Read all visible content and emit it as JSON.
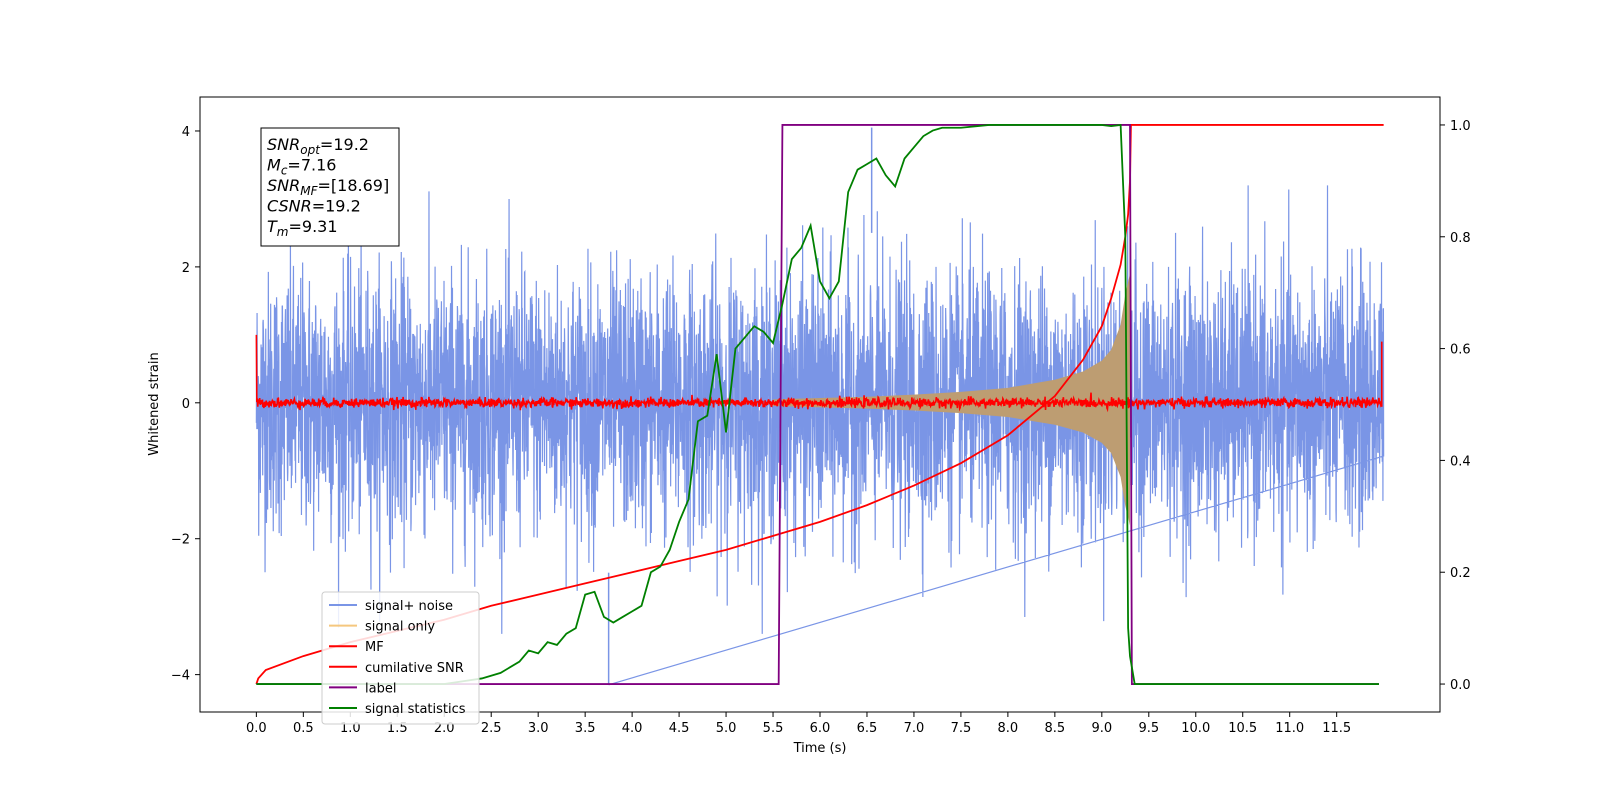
{
  "chart_data": {
    "type": "line",
    "xlabel": "Time (s)",
    "ylabel": "Whitened strain",
    "xlim": [
      -0.6,
      12.6
    ],
    "ylim": [
      -4.55,
      4.5
    ],
    "y2lim": [
      -0.05,
      1.05
    ],
    "xticks": [
      "0.0",
      "0.5",
      "1.0",
      "1.5",
      "2.0",
      "2.5",
      "3.0",
      "3.5",
      "4.0",
      "4.5",
      "5.0",
      "5.5",
      "6.0",
      "6.5",
      "7.0",
      "7.5",
      "8.0",
      "8.5",
      "9.0",
      "9.5",
      "10.0",
      "10.5",
      "11.0",
      "11.5"
    ],
    "yticks": [
      "−4",
      "−2",
      "0",
      "2",
      "4"
    ],
    "y2ticks": [
      "0.0",
      "0.2",
      "0.4",
      "0.6",
      "0.8",
      "1.0"
    ],
    "stats_box": [
      {
        "base": "SNR",
        "sub": "opt",
        "value": "=19.2"
      },
      {
        "base": "M",
        "sub": "c",
        "value": "=7.16"
      },
      {
        "base": "SNR",
        "sub": "MF",
        "value": "=[18.69]"
      },
      {
        "base": "CSNR",
        "sub": "",
        "value": "=19.2"
      },
      {
        "base": "T",
        "sub": "m",
        "value": "=9.31"
      }
    ],
    "legend": [
      "signal+ noise",
      "signal only",
      "MF",
      "cumilative SNR",
      "label",
      "signal statistics"
    ],
    "legend_position": "lower-left",
    "colors": {
      "noise": "#7a95e6",
      "signal": "#f5c77e",
      "signal_fill": "#bd9d72",
      "mf": "#ff0000",
      "csnr": "#ff0000",
      "label": "#800080",
      "stats": "#008000"
    },
    "series": [
      {
        "name": "signal+ noise",
        "description_range": "random noise between -3 and 3.2 spanning 0 to 12 s"
      },
      {
        "name": "signal only",
        "envelope_x": [
          5.5,
          6.0,
          6.5,
          7.0,
          7.5,
          8.0,
          8.5,
          8.8,
          9.0,
          9.1,
          9.2,
          9.25,
          9.3
        ],
        "envelope_y": [
          0.05,
          0.07,
          0.09,
          0.12,
          0.16,
          0.22,
          0.34,
          0.46,
          0.62,
          0.78,
          1.15,
          1.6,
          1.9
        ]
      },
      {
        "name": "MF",
        "description_range": "noisy line around 0 with amplitude ~0.1, spikes to 1.0 at t=0 and t=11.95"
      },
      {
        "name": "cumilative SNR",
        "axis": "right",
        "x": [
          0.0,
          0.02,
          0.1,
          0.5,
          1.0,
          1.5,
          2.0,
          2.5,
          3.0,
          3.5,
          4.0,
          4.5,
          5.0,
          5.5,
          6.0,
          6.5,
          7.0,
          7.5,
          8.0,
          8.5,
          8.8,
          9.0,
          9.1,
          9.2,
          9.25,
          9.28,
          9.3,
          9.31,
          12.0
        ],
        "y": [
          0.0,
          0.01,
          0.025,
          0.05,
          0.075,
          0.095,
          0.115,
          0.14,
          0.16,
          0.18,
          0.2,
          0.22,
          0.24,
          0.265,
          0.29,
          0.32,
          0.355,
          0.395,
          0.445,
          0.515,
          0.58,
          0.64,
          0.69,
          0.75,
          0.8,
          0.84,
          0.9,
          1.0,
          1.0
        ]
      },
      {
        "name": "label",
        "axis": "right",
        "x": [
          0.0,
          5.56,
          5.6,
          9.3,
          9.32,
          11.95
        ],
        "y": [
          0.0,
          0.0,
          1.0,
          1.0,
          0.0,
          0.0
        ]
      },
      {
        "name": "signal statistics",
        "axis": "right",
        "x": [
          0.0,
          2.0,
          2.2,
          2.4,
          2.6,
          2.8,
          2.9,
          3.0,
          3.1,
          3.2,
          3.3,
          3.4,
          3.5,
          3.6,
          3.7,
          3.8,
          3.9,
          4.0,
          4.1,
          4.2,
          4.3,
          4.4,
          4.5,
          4.6,
          4.7,
          4.8,
          4.9,
          5.0,
          5.1,
          5.2,
          5.3,
          5.4,
          5.5,
          5.6,
          5.7,
          5.8,
          5.9,
          6.0,
          6.1,
          6.2,
          6.3,
          6.4,
          6.5,
          6.6,
          6.7,
          6.8,
          6.9,
          7.0,
          7.1,
          7.2,
          7.3,
          7.5,
          7.8,
          8.0,
          8.5,
          9.0,
          9.1,
          9.2,
          9.25,
          9.28,
          9.3,
          9.35,
          9.4,
          11.95
        ],
        "y": [
          0.0,
          0.0,
          0.005,
          0.01,
          0.02,
          0.04,
          0.06,
          0.055,
          0.075,
          0.07,
          0.09,
          0.1,
          0.16,
          0.165,
          0.12,
          0.11,
          0.12,
          0.13,
          0.14,
          0.2,
          0.21,
          0.24,
          0.29,
          0.33,
          0.47,
          0.48,
          0.59,
          0.45,
          0.6,
          0.62,
          0.64,
          0.63,
          0.61,
          0.68,
          0.76,
          0.78,
          0.82,
          0.72,
          0.69,
          0.72,
          0.88,
          0.92,
          0.93,
          0.94,
          0.91,
          0.89,
          0.94,
          0.96,
          0.98,
          0.99,
          0.995,
          0.995,
          1.0,
          1.0,
          1.0,
          1.0,
          0.998,
          1.0,
          0.8,
          0.1,
          0.05,
          0.0,
          0.0,
          0.0
        ]
      }
    ]
  }
}
